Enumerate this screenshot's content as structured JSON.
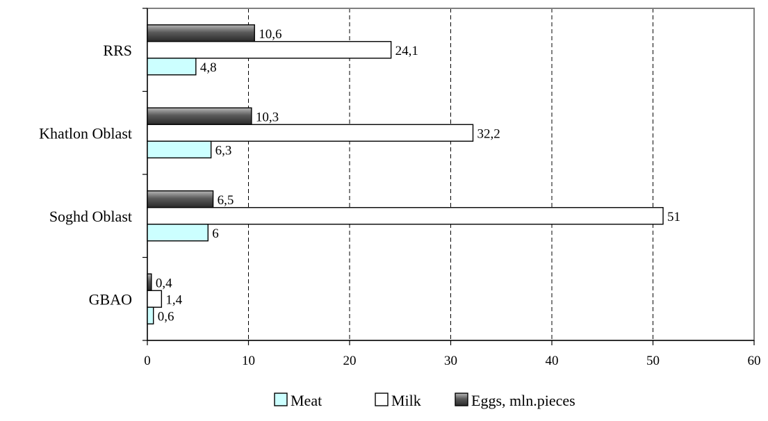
{
  "chart_data": {
    "type": "bar",
    "orientation": "horizontal",
    "categories": [
      "RRS",
      "Khatlon Oblast",
      "Soghd Oblast",
      "GBAO"
    ],
    "series": [
      {
        "name": "Eggs, mln.pieces",
        "values": [
          "10,6",
          "10,3",
          "6,5",
          "0,4"
        ],
        "numeric": [
          10.6,
          10.3,
          6.5,
          0.4
        ],
        "color": "#555555"
      },
      {
        "name": "Milk",
        "values": [
          "24,1",
          "32,2",
          "51",
          "1,4"
        ],
        "numeric": [
          24.1,
          32.2,
          51,
          1.4
        ],
        "color": "#ffffff"
      },
      {
        "name": "Meat",
        "values": [
          "4,8",
          "6,3",
          "6",
          "0,6"
        ],
        "numeric": [
          4.8,
          6.3,
          6,
          0.6
        ],
        "color": "#ccffff"
      }
    ],
    "xlim": [
      0,
      60
    ],
    "x_ticks": [
      "0",
      "10",
      "20",
      "30",
      "40",
      "50",
      "60"
    ],
    "grid": "vertical-dashed",
    "legend": {
      "position": "bottom",
      "order": [
        "Meat",
        "Milk",
        "Eggs, mln.pieces"
      ]
    }
  }
}
